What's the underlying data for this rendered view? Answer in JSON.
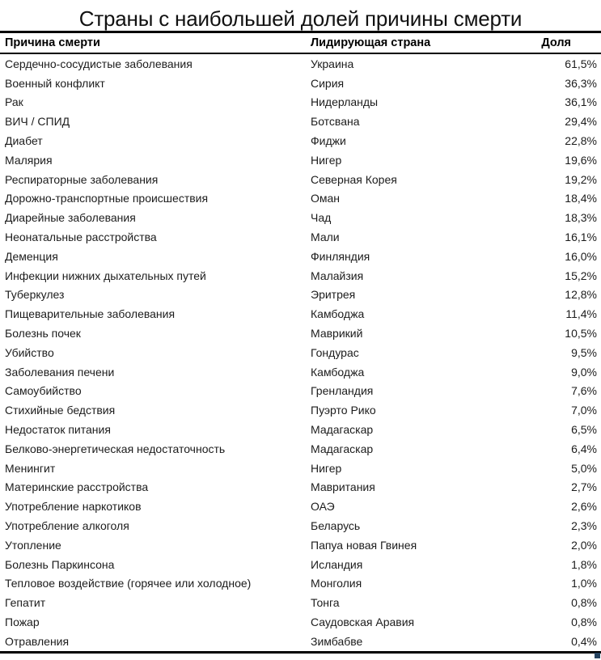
{
  "title": "Страны с наибольшей долей причины смерти",
  "chart_data": {
    "type": "table",
    "title": "Страны с наибольшей долей причины смерти",
    "columns": [
      "Причина смерти",
      "Лидирующая страна",
      "Доля"
    ],
    "rows": [
      [
        "Сердечно-сосудистые заболевания",
        "Украина",
        "61,5%"
      ],
      [
        "Военный конфликт",
        "Сирия",
        "36,3%"
      ],
      [
        "Рак",
        "Нидерланды",
        "36,1%"
      ],
      [
        "ВИЧ / СПИД",
        "Ботсвана",
        "29,4%"
      ],
      [
        "Диабет",
        "Фиджи",
        "22,8%"
      ],
      [
        "Малярия",
        "Нигер",
        "19,6%"
      ],
      [
        "Респираторные заболевания",
        "Северная Корея",
        "19,2%"
      ],
      [
        "Дорожно-транспортные происшествия",
        "Оман",
        "18,4%"
      ],
      [
        "Диарейные заболевания",
        "Чад",
        "18,3%"
      ],
      [
        "Неонатальные расстройства",
        "Мали",
        "16,1%"
      ],
      [
        "Деменция",
        "Финляндия",
        "16,0%"
      ],
      [
        "Инфекции нижних дыхательных путей",
        "Малайзия",
        "15,2%"
      ],
      [
        "Туберкулез",
        "Эритрея",
        "12,8%"
      ],
      [
        "Пищеварительные заболевания",
        "Камбоджа",
        "11,4%"
      ],
      [
        "Болезнь почек",
        "Маврикий",
        "10,5%"
      ],
      [
        "Убийство",
        "Гондурас",
        "9,5%"
      ],
      [
        "Заболевания печени",
        "Камбоджа",
        "9,0%"
      ],
      [
        "Самоубийство",
        "Гренландия",
        "7,6%"
      ],
      [
        "Стихийные бедствия",
        "Пуэрто Рико",
        "7,0%"
      ],
      [
        "Недостаток питания",
        "Мадагаскар",
        "6,5%"
      ],
      [
        "Белково-энергетическая недостаточность",
        "Мадагаскар",
        "6,4%"
      ],
      [
        "Менингит",
        "Нигер",
        "5,0%"
      ],
      [
        "Материнские расстройства",
        "Мавритания",
        "2,7%"
      ],
      [
        "Употребление наркотиков",
        "ОАЭ",
        "2,6%"
      ],
      [
        "Употребление алкоголя",
        "Беларусь",
        "2,3%"
      ],
      [
        "Утопление",
        "Папуа новая Гвинея",
        "2,0%"
      ],
      [
        "Болезнь Паркинсона",
        "Исландия",
        "1,8%"
      ],
      [
        "Тепловое воздействие (горячее или холодное)",
        "Монголия",
        "1,0%"
      ],
      [
        "Гепатит",
        "Тонга",
        "0,8%"
      ],
      [
        "Пожар",
        "Саудовская Аравия",
        "0,8%"
      ],
      [
        "Отравления",
        "Зимбабве",
        "0,4%"
      ]
    ]
  },
  "colors": {
    "border": "#000000",
    "text": "#1c1c1c",
    "fill_handle": "#26435f"
  }
}
